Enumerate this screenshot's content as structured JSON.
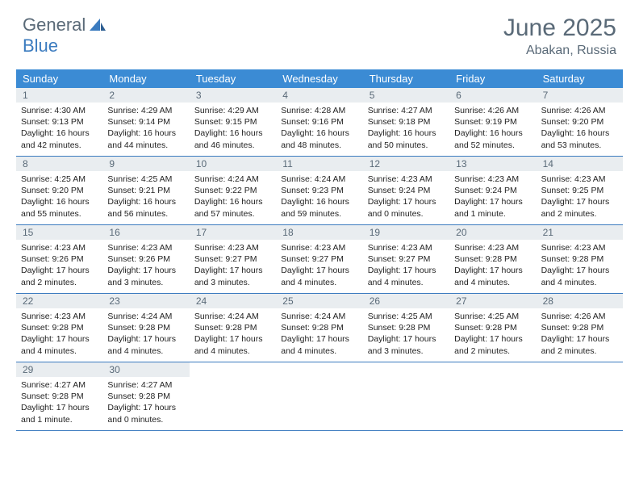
{
  "logo": {
    "text1": "General",
    "text2": "Blue"
  },
  "title": "June 2025",
  "location": "Abakan, Russia",
  "colors": {
    "header_bg": "#3b8bd4",
    "accent": "#3b7bbf",
    "daynum_bg": "#e9edf0",
    "text_muted": "#5a6a78",
    "text_body": "#232323"
  },
  "day_names": [
    "Sunday",
    "Monday",
    "Tuesday",
    "Wednesday",
    "Thursday",
    "Friday",
    "Saturday"
  ],
  "weeks": [
    [
      {
        "n": "1",
        "sr": "Sunrise: 4:30 AM",
        "ss": "Sunset: 9:13 PM",
        "d1": "Daylight: 16 hours",
        "d2": "and 42 minutes."
      },
      {
        "n": "2",
        "sr": "Sunrise: 4:29 AM",
        "ss": "Sunset: 9:14 PM",
        "d1": "Daylight: 16 hours",
        "d2": "and 44 minutes."
      },
      {
        "n": "3",
        "sr": "Sunrise: 4:29 AM",
        "ss": "Sunset: 9:15 PM",
        "d1": "Daylight: 16 hours",
        "d2": "and 46 minutes."
      },
      {
        "n": "4",
        "sr": "Sunrise: 4:28 AM",
        "ss": "Sunset: 9:16 PM",
        "d1": "Daylight: 16 hours",
        "d2": "and 48 minutes."
      },
      {
        "n": "5",
        "sr": "Sunrise: 4:27 AM",
        "ss": "Sunset: 9:18 PM",
        "d1": "Daylight: 16 hours",
        "d2": "and 50 minutes."
      },
      {
        "n": "6",
        "sr": "Sunrise: 4:26 AM",
        "ss": "Sunset: 9:19 PM",
        "d1": "Daylight: 16 hours",
        "d2": "and 52 minutes."
      },
      {
        "n": "7",
        "sr": "Sunrise: 4:26 AM",
        "ss": "Sunset: 9:20 PM",
        "d1": "Daylight: 16 hours",
        "d2": "and 53 minutes."
      }
    ],
    [
      {
        "n": "8",
        "sr": "Sunrise: 4:25 AM",
        "ss": "Sunset: 9:20 PM",
        "d1": "Daylight: 16 hours",
        "d2": "and 55 minutes."
      },
      {
        "n": "9",
        "sr": "Sunrise: 4:25 AM",
        "ss": "Sunset: 9:21 PM",
        "d1": "Daylight: 16 hours",
        "d2": "and 56 minutes."
      },
      {
        "n": "10",
        "sr": "Sunrise: 4:24 AM",
        "ss": "Sunset: 9:22 PM",
        "d1": "Daylight: 16 hours",
        "d2": "and 57 minutes."
      },
      {
        "n": "11",
        "sr": "Sunrise: 4:24 AM",
        "ss": "Sunset: 9:23 PM",
        "d1": "Daylight: 16 hours",
        "d2": "and 59 minutes."
      },
      {
        "n": "12",
        "sr": "Sunrise: 4:23 AM",
        "ss": "Sunset: 9:24 PM",
        "d1": "Daylight: 17 hours",
        "d2": "and 0 minutes."
      },
      {
        "n": "13",
        "sr": "Sunrise: 4:23 AM",
        "ss": "Sunset: 9:24 PM",
        "d1": "Daylight: 17 hours",
        "d2": "and 1 minute."
      },
      {
        "n": "14",
        "sr": "Sunrise: 4:23 AM",
        "ss": "Sunset: 9:25 PM",
        "d1": "Daylight: 17 hours",
        "d2": "and 2 minutes."
      }
    ],
    [
      {
        "n": "15",
        "sr": "Sunrise: 4:23 AM",
        "ss": "Sunset: 9:26 PM",
        "d1": "Daylight: 17 hours",
        "d2": "and 2 minutes."
      },
      {
        "n": "16",
        "sr": "Sunrise: 4:23 AM",
        "ss": "Sunset: 9:26 PM",
        "d1": "Daylight: 17 hours",
        "d2": "and 3 minutes."
      },
      {
        "n": "17",
        "sr": "Sunrise: 4:23 AM",
        "ss": "Sunset: 9:27 PM",
        "d1": "Daylight: 17 hours",
        "d2": "and 3 minutes."
      },
      {
        "n": "18",
        "sr": "Sunrise: 4:23 AM",
        "ss": "Sunset: 9:27 PM",
        "d1": "Daylight: 17 hours",
        "d2": "and 4 minutes."
      },
      {
        "n": "19",
        "sr": "Sunrise: 4:23 AM",
        "ss": "Sunset: 9:27 PM",
        "d1": "Daylight: 17 hours",
        "d2": "and 4 minutes."
      },
      {
        "n": "20",
        "sr": "Sunrise: 4:23 AM",
        "ss": "Sunset: 9:28 PM",
        "d1": "Daylight: 17 hours",
        "d2": "and 4 minutes."
      },
      {
        "n": "21",
        "sr": "Sunrise: 4:23 AM",
        "ss": "Sunset: 9:28 PM",
        "d1": "Daylight: 17 hours",
        "d2": "and 4 minutes."
      }
    ],
    [
      {
        "n": "22",
        "sr": "Sunrise: 4:23 AM",
        "ss": "Sunset: 9:28 PM",
        "d1": "Daylight: 17 hours",
        "d2": "and 4 minutes."
      },
      {
        "n": "23",
        "sr": "Sunrise: 4:24 AM",
        "ss": "Sunset: 9:28 PM",
        "d1": "Daylight: 17 hours",
        "d2": "and 4 minutes."
      },
      {
        "n": "24",
        "sr": "Sunrise: 4:24 AM",
        "ss": "Sunset: 9:28 PM",
        "d1": "Daylight: 17 hours",
        "d2": "and 4 minutes."
      },
      {
        "n": "25",
        "sr": "Sunrise: 4:24 AM",
        "ss": "Sunset: 9:28 PM",
        "d1": "Daylight: 17 hours",
        "d2": "and 4 minutes."
      },
      {
        "n": "26",
        "sr": "Sunrise: 4:25 AM",
        "ss": "Sunset: 9:28 PM",
        "d1": "Daylight: 17 hours",
        "d2": "and 3 minutes."
      },
      {
        "n": "27",
        "sr": "Sunrise: 4:25 AM",
        "ss": "Sunset: 9:28 PM",
        "d1": "Daylight: 17 hours",
        "d2": "and 2 minutes."
      },
      {
        "n": "28",
        "sr": "Sunrise: 4:26 AM",
        "ss": "Sunset: 9:28 PM",
        "d1": "Daylight: 17 hours",
        "d2": "and 2 minutes."
      }
    ],
    [
      {
        "n": "29",
        "sr": "Sunrise: 4:27 AM",
        "ss": "Sunset: 9:28 PM",
        "d1": "Daylight: 17 hours",
        "d2": "and 1 minute."
      },
      {
        "n": "30",
        "sr": "Sunrise: 4:27 AM",
        "ss": "Sunset: 9:28 PM",
        "d1": "Daylight: 17 hours",
        "d2": "and 0 minutes."
      },
      null,
      null,
      null,
      null,
      null
    ]
  ]
}
